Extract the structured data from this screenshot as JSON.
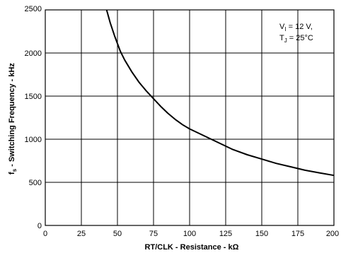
{
  "chart_data": {
    "type": "line",
    "title": "",
    "xlabel": "RT/CLK - Resistance - kΩ",
    "ylabel_main": "f",
    "ylabel_sub": "s",
    "ylabel_rest": " - Switching Frequency - kHz",
    "xlim": [
      0,
      200
    ],
    "ylim": [
      0,
      2500
    ],
    "xticks": [
      0,
      25,
      50,
      75,
      100,
      125,
      150,
      175,
      200
    ],
    "yticks": [
      0,
      500,
      1000,
      1500,
      2000,
      2500
    ],
    "grid": true,
    "legend": "none",
    "annotation": {
      "line1_main": "V",
      "line1_sub": "I",
      "line1_rest": " = 12 V,",
      "line2_main": "T",
      "line2_sub": "J",
      "line2_rest": " = 25°C"
    },
    "series": [
      {
        "x": [
          42.5,
          45,
          48,
          50,
          52,
          55,
          60,
          65,
          70,
          75,
          80,
          85,
          90,
          95,
          100,
          110,
          120,
          130,
          140,
          150,
          160,
          170,
          180,
          190,
          200
        ],
        "y": [
          2500,
          2350,
          2200,
          2110,
          2020,
          1920,
          1780,
          1660,
          1560,
          1470,
          1380,
          1300,
          1230,
          1170,
          1120,
          1040,
          960,
          880,
          820,
          770,
          720,
          680,
          640,
          610,
          580
        ]
      }
    ],
    "line_color": "#000000"
  }
}
